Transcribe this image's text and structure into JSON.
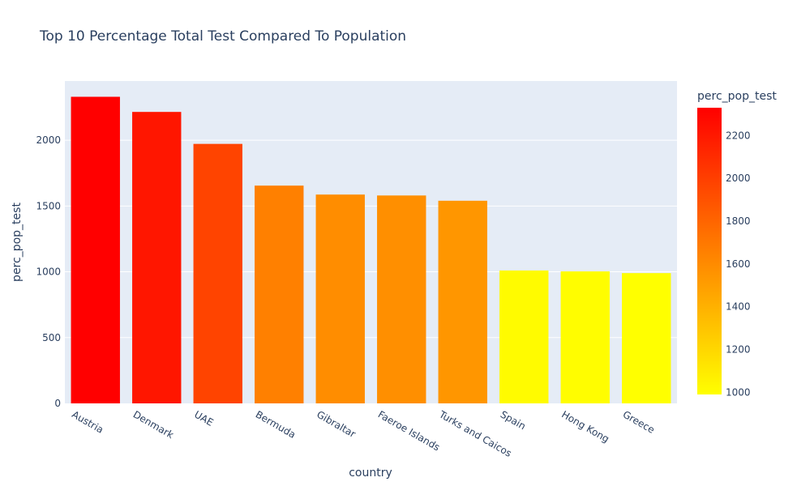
{
  "chart_data": {
    "type": "bar",
    "title": "Top 10 Percentage Total Test Compared To Population",
    "xlabel": "country",
    "ylabel": "perc_pop_test",
    "categories": [
      "Austria",
      "Denmark",
      "UAE",
      "Bermuda",
      "Gibraltar",
      "Faeroe Islands",
      "Turks and Caicos",
      "Spain",
      "Hong Kong",
      "Greece"
    ],
    "values": [
      2330,
      2215,
      1972,
      1655,
      1587,
      1580,
      1540,
      1010,
      1003,
      990
    ],
    "ylim": [
      0,
      2450
    ],
    "yticks": [
      0,
      500,
      1000,
      1500,
      2000
    ],
    "ytick_labels": [
      "0",
      "500",
      "1000",
      "1500",
      "2000"
    ],
    "grid": true,
    "colorbar": {
      "title": "perc_pop_test",
      "range": [
        990,
        2330
      ],
      "ticks": [
        1000,
        1200,
        1400,
        1600,
        1800,
        2000,
        2200
      ],
      "tick_labels": [
        "1000",
        "1200",
        "1400",
        "1600",
        "1800",
        "2000",
        "2200"
      ],
      "colorscale": [
        "#ffff00",
        "#ff0000"
      ]
    },
    "colors": {
      "plot_bg": "#e5ecf6",
      "grid": "#ffffff",
      "text": "#2a3f5f"
    }
  }
}
